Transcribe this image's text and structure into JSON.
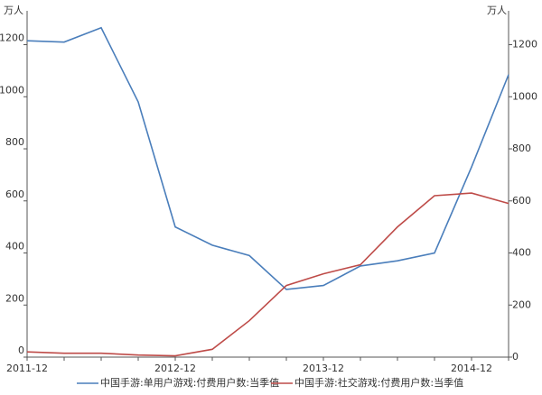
{
  "chart_data": {
    "type": "line",
    "y_unit": "万人",
    "y2_unit": "万人",
    "categories": [
      "2011-12",
      null,
      null,
      null,
      "2012-12",
      null,
      null,
      null,
      "2013-12",
      null,
      null,
      null,
      "2014-12",
      null
    ],
    "series": [
      {
        "name": "中国手游:单用户游戏:付费用户数:当季值",
        "color": "#4a7ebb",
        "axis": "y",
        "values": [
          1215,
          1210,
          1265,
          980,
          500,
          430,
          390,
          260,
          275,
          350,
          370,
          400,
          730,
          1085
        ]
      },
      {
        "name": "中国手游:社交游戏:付费用户数:当季值",
        "color": "#be4b48",
        "axis": "y2",
        "values": [
          20,
          15,
          15,
          8,
          5,
          30,
          140,
          275,
          320,
          355,
          500,
          620,
          630,
          590
        ]
      }
    ],
    "ylim": [
      0,
      1330
    ],
    "yticks": [
      0,
      200,
      400,
      600,
      800,
      1000,
      1200
    ],
    "y2lim": [
      0,
      1330
    ],
    "y2ticks": [
      0,
      200,
      400,
      600,
      800,
      1000,
      1200
    ],
    "legend": "bottom"
  }
}
